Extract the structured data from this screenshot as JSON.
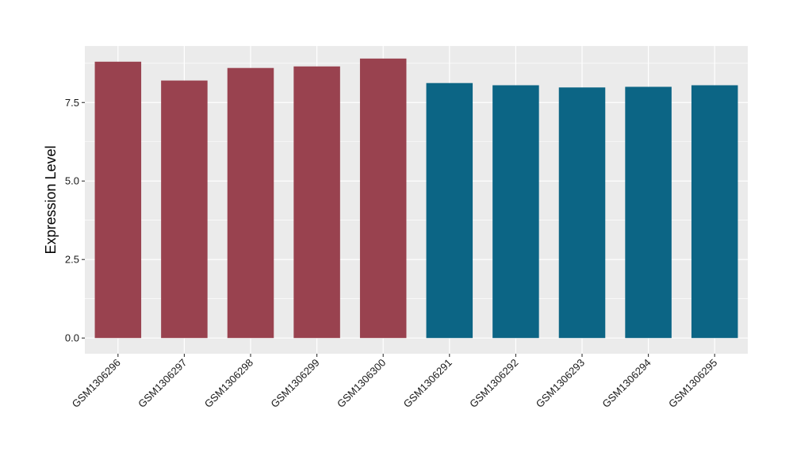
{
  "chart_data": {
    "type": "bar",
    "ylabel": "Expression Level",
    "xlabel": "",
    "ylim": [
      -0.5,
      9.3
    ],
    "y_ticks": [
      0.0,
      2.5,
      5.0,
      7.5
    ],
    "y_tick_labels": [
      "0.0",
      "2.5",
      "5.0",
      "7.5"
    ],
    "grid": true,
    "panel_color": "#EBEBEB",
    "categories": [
      "GSM1306296",
      "GSM1306297",
      "GSM1306298",
      "GSM1306299",
      "GSM1306300",
      "GSM1306291",
      "GSM1306292",
      "GSM1306293",
      "GSM1306294",
      "GSM1306295"
    ],
    "values": [
      8.8,
      8.2,
      8.6,
      8.65,
      8.9,
      8.12,
      8.05,
      7.98,
      8.0,
      8.05
    ],
    "bar_colors": [
      "#99424F",
      "#99424F",
      "#99424F",
      "#99424F",
      "#99424F",
      "#0C6585",
      "#0C6585",
      "#0C6585",
      "#0C6585",
      "#0C6585"
    ]
  }
}
